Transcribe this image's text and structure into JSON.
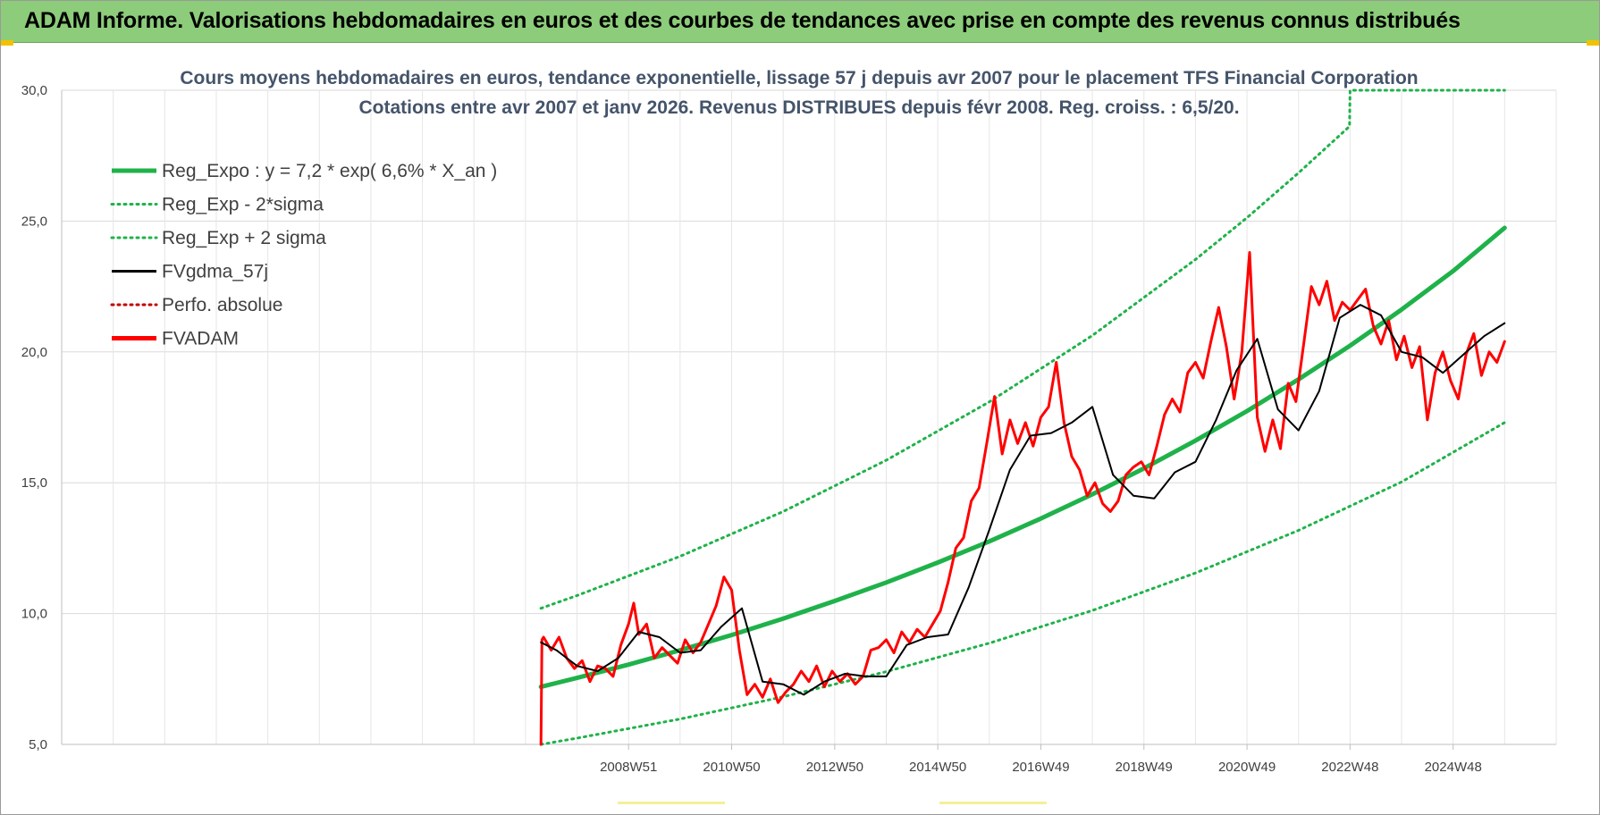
{
  "banner": {
    "title": "ADAM Informe. Valorisations hebdomadaires en euros et des courbes de tendances avec prise en compte des revenus connus distribués"
  },
  "chart_data": {
    "type": "line",
    "title": "Cours moyens hebdomadaires en euros, tendance exponentielle, lissage 57 j depuis avr 2007 pour le placement TFS Financial Corporation",
    "subtitle": "Cotations entre avr 2007 et janv 2026. Revenus DISTRIBUES depuis févr 2008. Reg. croiss. : 6,5/20.",
    "xlabel": "",
    "ylabel": "",
    "ylim": [
      5,
      30
    ],
    "xlim": [
      1998.0,
      2027.0
    ],
    "yticks": [
      "5,0",
      "10,0",
      "15,0",
      "20,0",
      "25,0",
      "30,0"
    ],
    "ytick_values": [
      5,
      10,
      15,
      20,
      25,
      30
    ],
    "xticks": [
      "2008W51",
      "2010W50",
      "2012W50",
      "2014W50",
      "2016W49",
      "2018W49",
      "2020W49",
      "2022W48",
      "2024W48"
    ],
    "xtick_values": [
      2009.0,
      2011.0,
      2013.0,
      2015.0,
      2017.0,
      2019.0,
      2021.0,
      2023.0,
      2025.0
    ],
    "grid": true,
    "legend_position": "top-left",
    "series": [
      {
        "name": "Reg_Expo : y = 7,2 * exp( 6,6% *  X_an )",
        "style": "solid-thick",
        "color": "#1fb24a",
        "x": [
          2007.3,
          2008.0,
          2009.0,
          2010.0,
          2011.0,
          2012.0,
          2013.0,
          2014.0,
          2015.0,
          2016.0,
          2017.0,
          2018.0,
          2019.0,
          2020.0,
          2021.0,
          2022.0,
          2023.0,
          2024.0,
          2025.0,
          2026.0
        ],
        "y": [
          7.2,
          7.54,
          8.05,
          8.6,
          9.18,
          9.81,
          10.48,
          11.19,
          11.95,
          12.76,
          13.63,
          14.56,
          15.55,
          16.61,
          17.74,
          18.95,
          20.24,
          21.62,
          23.09,
          24.74
        ]
      },
      {
        "name": "Reg_Exp - 2*sigma",
        "style": "dotted",
        "color": "#1fb24a",
        "x": [
          2007.3,
          2008.0,
          2010.0,
          2012.0,
          2014.0,
          2016.0,
          2018.0,
          2020.0,
          2022.0,
          2024.0,
          2026.0
        ],
        "y": [
          5.0,
          5.24,
          5.97,
          6.82,
          7.78,
          8.87,
          10.12,
          11.55,
          13.18,
          15.03,
          17.3
        ]
      },
      {
        "name": "Reg_Exp + 2 sigma",
        "style": "dotted",
        "color": "#1fb24a",
        "x": [
          2007.3,
          2008.0,
          2010.0,
          2012.0,
          2014.0,
          2016.0,
          2018.0,
          2020.0,
          2021.0,
          2022.0,
          2022.99,
          2023.0,
          2024.0,
          2025.0,
          2026.0
        ],
        "y": [
          10.2,
          10.69,
          12.19,
          13.9,
          15.86,
          18.09,
          20.63,
          23.53,
          25.13,
          26.84,
          28.62,
          30.0,
          30.0,
          30.0,
          30.0
        ]
      },
      {
        "name": "FVgdma_57j",
        "style": "solid",
        "color": "#000000",
        "x": [
          2007.3,
          2007.6,
          2008.0,
          2008.4,
          2008.8,
          2009.2,
          2009.6,
          2010.0,
          2010.4,
          2010.8,
          2011.2,
          2011.6,
          2012.0,
          2012.4,
          2012.8,
          2013.2,
          2013.6,
          2014.0,
          2014.4,
          2014.8,
          2015.2,
          2015.6,
          2016.0,
          2016.4,
          2016.8,
          2017.2,
          2017.6,
          2018.0,
          2018.4,
          2018.8,
          2019.2,
          2019.6,
          2020.0,
          2020.4,
          2020.8,
          2021.2,
          2021.6,
          2022.0,
          2022.4,
          2022.8,
          2023.2,
          2023.6,
          2024.0,
          2024.4,
          2024.8,
          2025.2,
          2025.6,
          2026.0
        ],
        "y": [
          8.9,
          8.6,
          8.0,
          7.8,
          8.3,
          9.3,
          9.1,
          8.5,
          8.6,
          9.5,
          10.2,
          7.4,
          7.3,
          6.9,
          7.4,
          7.7,
          7.6,
          7.6,
          8.8,
          9.1,
          9.2,
          11.0,
          13.2,
          15.5,
          16.8,
          16.9,
          17.3,
          17.9,
          15.3,
          14.5,
          14.4,
          15.4,
          15.8,
          17.4,
          19.3,
          20.5,
          17.8,
          17.0,
          18.5,
          21.3,
          21.8,
          21.4,
          20.0,
          19.8,
          19.2,
          19.9,
          20.6,
          21.1
        ]
      },
      {
        "name": "Perfo. absolue",
        "style": "dotted",
        "color": "#c00000",
        "x": [],
        "y": []
      },
      {
        "name": "FVADAM",
        "style": "solid-thick",
        "color": "#ff0000",
        "x": [
          2007.3,
          2007.32,
          2007.35,
          2007.5,
          2007.65,
          2007.8,
          2007.95,
          2008.1,
          2008.25,
          2008.4,
          2008.55,
          2008.7,
          2008.85,
          2009.0,
          2009.1,
          2009.2,
          2009.35,
          2009.5,
          2009.65,
          2009.8,
          2009.95,
          2010.1,
          2010.25,
          2010.4,
          2010.55,
          2010.7,
          2010.85,
          2011.0,
          2011.15,
          2011.3,
          2011.45,
          2011.6,
          2011.75,
          2011.9,
          2012.05,
          2012.2,
          2012.35,
          2012.5,
          2012.65,
          2012.8,
          2012.95,
          2013.1,
          2013.25,
          2013.4,
          2013.55,
          2013.7,
          2013.85,
          2014.0,
          2014.15,
          2014.3,
          2014.45,
          2014.6,
          2014.75,
          2014.9,
          2015.05,
          2015.2,
          2015.35,
          2015.5,
          2015.65,
          2015.8,
          2015.95,
          2016.1,
          2016.25,
          2016.4,
          2016.55,
          2016.7,
          2016.85,
          2017.0,
          2017.15,
          2017.3,
          2017.45,
          2017.6,
          2017.75,
          2017.9,
          2018.05,
          2018.2,
          2018.35,
          2018.5,
          2018.65,
          2018.8,
          2018.95,
          2019.1,
          2019.25,
          2019.4,
          2019.55,
          2019.7,
          2019.85,
          2020.0,
          2020.15,
          2020.3,
          2020.45,
          2020.6,
          2020.75,
          2020.9,
          2021.05,
          2021.2,
          2021.35,
          2021.5,
          2021.65,
          2021.8,
          2021.95,
          2022.1,
          2022.25,
          2022.4,
          2022.55,
          2022.7,
          2022.85,
          2023.0,
          2023.15,
          2023.3,
          2023.45,
          2023.6,
          2023.75,
          2023.9,
          2024.05,
          2024.2,
          2024.35,
          2024.5,
          2024.65,
          2024.8,
          2024.95,
          2025.1,
          2025.25,
          2025.4,
          2025.55,
          2025.7,
          2025.85,
          2026.0
        ],
        "y": [
          5.0,
          9.0,
          9.1,
          8.6,
          9.1,
          8.3,
          7.9,
          8.2,
          7.4,
          8.0,
          7.9,
          7.6,
          8.8,
          9.6,
          10.4,
          9.2,
          9.6,
          8.3,
          8.7,
          8.4,
          8.1,
          9.0,
          8.5,
          8.9,
          9.6,
          10.3,
          11.4,
          10.9,
          8.6,
          6.9,
          7.3,
          6.8,
          7.5,
          6.6,
          7.0,
          7.3,
          7.8,
          7.4,
          8.0,
          7.2,
          7.8,
          7.4,
          7.7,
          7.3,
          7.6,
          8.6,
          8.7,
          9.0,
          8.5,
          9.3,
          8.9,
          9.4,
          9.1,
          9.6,
          10.1,
          11.2,
          12.5,
          12.9,
          14.3,
          14.8,
          16.5,
          18.3,
          16.1,
          17.4,
          16.5,
          17.3,
          16.4,
          17.5,
          17.9,
          19.6,
          17.3,
          16.0,
          15.5,
          14.5,
          15.0,
          14.2,
          13.9,
          14.3,
          15.3,
          15.6,
          15.8,
          15.3,
          16.4,
          17.6,
          18.2,
          17.7,
          19.2,
          19.6,
          19.0,
          20.4,
          21.7,
          20.2,
          18.2,
          20.0,
          23.8,
          17.5,
          16.2,
          17.4,
          16.3,
          18.8,
          18.1,
          20.3,
          22.5,
          21.8,
          22.7,
          21.2,
          21.9,
          21.6,
          22.0,
          22.4,
          21.0,
          20.3,
          21.2,
          19.7,
          20.6,
          19.4,
          20.2,
          17.4,
          19.2,
          20.0,
          18.9,
          18.2,
          19.9,
          20.7,
          19.1,
          20.0,
          19.6,
          20.4
        ]
      }
    ]
  }
}
